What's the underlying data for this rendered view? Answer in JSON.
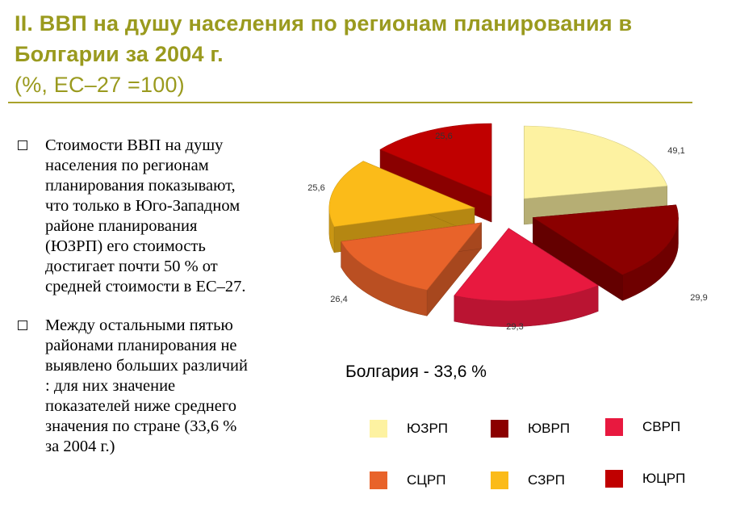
{
  "header": {
    "title_line1": "II. ВВП на душу населения по регионам планирования в",
    "title_line2": "Болгарии за 2004 г.",
    "title_line3": "(%, ЕС–27 =100)"
  },
  "bullets": [
    {
      "text": "Стоимости ВВП на душу\nнаселения по регионам\nпланирования показывают,\nчто только в Юго-Западном\nрайоне планирования\n(ЮЗРП) его стоимость\nдостигает почти 50 % от\nсредней стоимости в ЕС–27."
    },
    {
      "text": "Между остальными пятью\nрайонами планирования не\nвыявлено больших различий\n: для них значение\nпоказателей ниже среднего\nзначения по стране (33,6 %\nза 2004 г.)"
    }
  ],
  "total_label": "Болгария - 33,6 %",
  "chart_data": {
    "type": "pie",
    "title": "",
    "variant": "3d-exploded",
    "slices": [
      {
        "name": "ЮЗРП",
        "value": 49.1,
        "label": "49,1",
        "color": "#fdf2a1"
      },
      {
        "name": "ЮВРП",
        "value": 29.9,
        "label": "29,9",
        "color": "#8b0000"
      },
      {
        "name": "СВРП",
        "value": 29.3,
        "label": "29,3",
        "color": "#e8193f"
      },
      {
        "name": "СЦРП",
        "value": 26.4,
        "label": "26,4",
        "color": "#e8632a"
      },
      {
        "name": "СЗРП",
        "value": 25.6,
        "label": "25,6",
        "color": "#fbbb19"
      },
      {
        "name": "ЮЦРП",
        "value": 25.6,
        "label": "25,6",
        "color": "#c00000"
      }
    ],
    "legend_position": "bottom"
  }
}
